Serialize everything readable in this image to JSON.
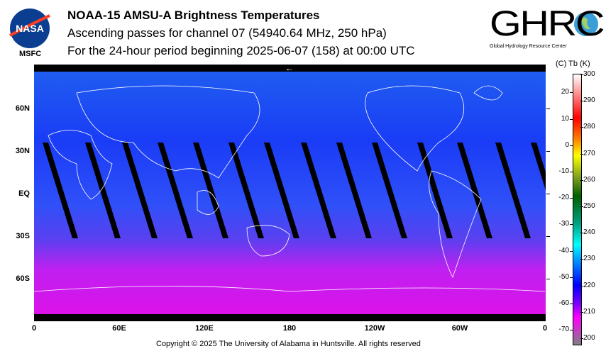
{
  "header": {
    "title": "NOAA-15 AMSU-A Brightness Temperatures",
    "subtitle1": "Ascending passes for channel 07 (54940.64 MHz, 250 hPa)",
    "subtitle2": "For the 24-hour period beginning 2025-06-07 (158) at 00:00 UTC"
  },
  "logos": {
    "nasa": "NASA",
    "msfc": "MSFC",
    "ghrc": "GHRC",
    "ghrc_sub": "Global Hydrology Resource Center"
  },
  "map": {
    "lat_labels": [
      "60N",
      "30N",
      "EQ",
      "30S",
      "60S"
    ],
    "lon_labels": [
      "0",
      "60E",
      "120E",
      "180",
      "120W",
      "60W",
      "0"
    ],
    "dateline_marker": "←"
  },
  "colorbar": {
    "header": "(C)  Tb  (K)",
    "celsius": [
      "20",
      "10",
      "0",
      "-10",
      "-20",
      "-30",
      "-40",
      "-50",
      "-60",
      "-70"
    ],
    "kelvin": [
      "300",
      "290",
      "280",
      "270",
      "260",
      "250",
      "240",
      "230",
      "220",
      "210",
      "200"
    ]
  },
  "footer": {
    "copyright": "Copyright © 2025 The University of Alabama in Huntsville.  All rights reserved"
  }
}
